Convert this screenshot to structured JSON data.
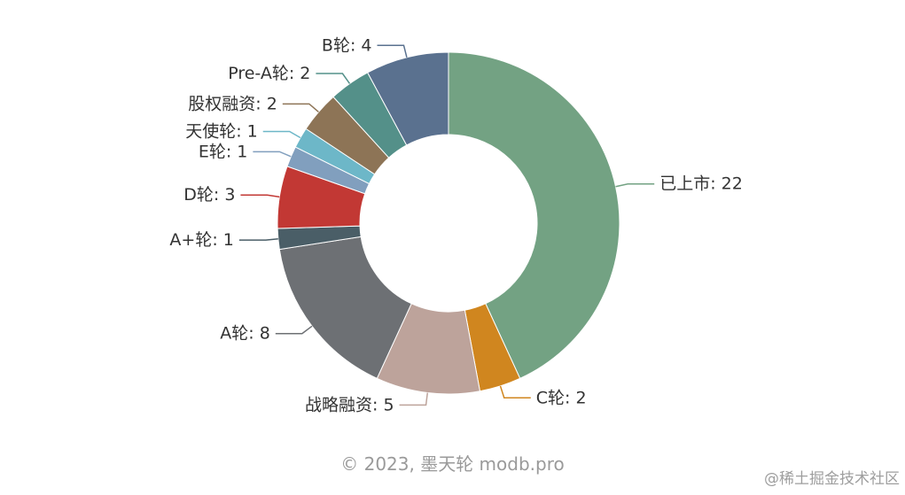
{
  "chart_data": {
    "type": "pie",
    "donut": true,
    "slices": [
      {
        "label": "已上市",
        "value": 22,
        "color": "#73a283",
        "text": "已上市: 22"
      },
      {
        "label": "C轮",
        "value": 2,
        "color": "#d0861f",
        "text": "C轮: 2"
      },
      {
        "label": "战略融资",
        "value": 5,
        "color": "#bda39b",
        "text": "战略融资: 5"
      },
      {
        "label": "A轮",
        "value": 8,
        "color": "#6d7074",
        "text": "A轮: 8"
      },
      {
        "label": "A+轮",
        "value": 1,
        "color": "#4a5e67",
        "text": "A+轮: 1"
      },
      {
        "label": "D轮",
        "value": 3,
        "color": "#c23834",
        "text": "D轮: 3"
      },
      {
        "label": "E轮",
        "value": 1,
        "color": "#819fbe",
        "text": "E轮: 1"
      },
      {
        "label": "天使轮",
        "value": 1,
        "color": "#6db7c8",
        "text": "天使轮: 1"
      },
      {
        "label": "股权融资",
        "value": 2,
        "color": "#8d7456",
        "text": "股权融资: 2"
      },
      {
        "label": "Pre-A轮",
        "value": 2,
        "color": "#549089",
        "text": "Pre-A轮: 2"
      },
      {
        "label": "B轮",
        "value": 4,
        "color": "#5a718f",
        "text": "B轮: 4"
      }
    ]
  },
  "footer": {
    "credit": "© 2023, 墨天轮 modb.pro"
  },
  "watermark": "@稀土掘金技术社区"
}
